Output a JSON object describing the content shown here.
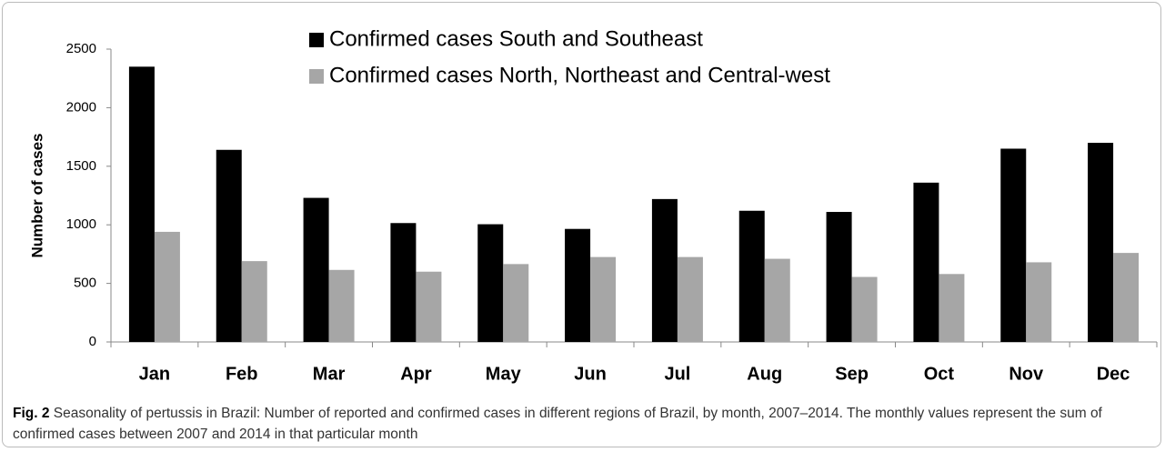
{
  "chart_data": {
    "type": "bar",
    "y_label": "Number of cases",
    "caption_label": "Fig. 2",
    "caption": "Seasonality of pertussis in Brazil: Number of reported and confirmed cases in different regions of Brazil, by month, 2007–2014. The monthly values represent the sum of confirmed cases between 2007 and 2014 in that particular month",
    "categories": [
      "Jan",
      "Feb",
      "Mar",
      "Apr",
      "May",
      "Jun",
      "Jul",
      "Aug",
      "Sep",
      "Oct",
      "Nov",
      "Dec"
    ],
    "series": [
      {
        "name": "Confirmed cases South and Southeast",
        "color": "#000000",
        "values": [
          2350,
          1640,
          1230,
          1015,
          1005,
          965,
          1220,
          1120,
          1110,
          1360,
          1650,
          1700
        ]
      },
      {
        "name": "Confirmed cases North, Northeast and Central-west",
        "color": "#a6a6a6",
        "values": [
          940,
          690,
          615,
          600,
          665,
          725,
          725,
          710,
          555,
          580,
          680,
          760
        ]
      }
    ],
    "ylim": [
      0,
      2500
    ],
    "yticks": [
      0,
      500,
      1000,
      1500,
      2000,
      2500
    ],
    "grid": false
  }
}
